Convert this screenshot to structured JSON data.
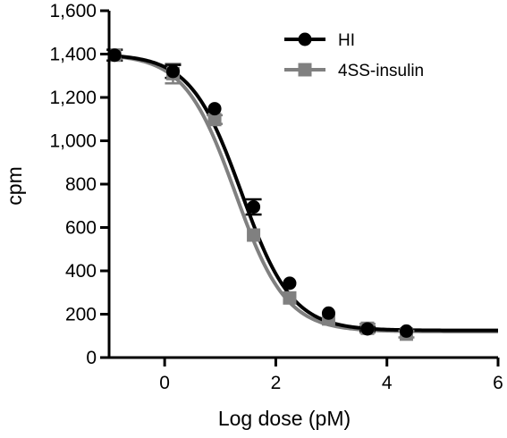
{
  "chart_data": {
    "type": "line",
    "xlabel": "Log dose (pM)",
    "ylabel": "cpm",
    "xlim": [
      -1,
      6
    ],
    "ylim": [
      0,
      1600
    ],
    "x_ticks": [
      0,
      2,
      4,
      6
    ],
    "x_tick_labels": [
      "0",
      "2",
      "4",
      "6"
    ],
    "y_ticks": [
      0,
      200,
      400,
      600,
      800,
      1000,
      1200,
      1400,
      1600
    ],
    "y_tick_labels": [
      "0",
      "200",
      "400",
      "600",
      "800",
      "1,000",
      "1,200",
      "1,400",
      "1,600"
    ],
    "grid": false,
    "legend_position": "top-right",
    "series": [
      {
        "name": "HI",
        "color": "#000000",
        "marker": "circle",
        "points": [
          {
            "x": -0.9,
            "y": 1395,
            "err": 25
          },
          {
            "x": 0.15,
            "y": 1320,
            "err": 30
          },
          {
            "x": 0.9,
            "y": 1148,
            "err": 0
          },
          {
            "x": 1.6,
            "y": 695,
            "err": 35
          },
          {
            "x": 2.25,
            "y": 343,
            "err": 0
          },
          {
            "x": 2.95,
            "y": 205,
            "err": 0
          },
          {
            "x": 3.65,
            "y": 132,
            "err": 10
          },
          {
            "x": 4.35,
            "y": 122,
            "err": 0
          }
        ],
        "fit": {
          "top": 1400,
          "bottom": 125,
          "logEC50": 1.38,
          "hill": -0.95
        }
      },
      {
        "name": "4SS-insulin",
        "color": "#808080",
        "marker": "square",
        "points": [
          {
            "x": -0.9,
            "y": 1395,
            "err": 25
          },
          {
            "x": 0.15,
            "y": 1310,
            "err": 45
          },
          {
            "x": 0.9,
            "y": 1098,
            "err": 20
          },
          {
            "x": 1.6,
            "y": 565,
            "err": 0
          },
          {
            "x": 2.25,
            "y": 275,
            "err": 0
          },
          {
            "x": 2.95,
            "y": 178,
            "err": 0
          },
          {
            "x": 3.65,
            "y": 135,
            "err": 20
          },
          {
            "x": 4.35,
            "y": 108,
            "err": 15
          }
        ],
        "fit": {
          "top": 1400,
          "bottom": 120,
          "logEC50": 1.27,
          "hill": -0.95
        }
      }
    ]
  }
}
